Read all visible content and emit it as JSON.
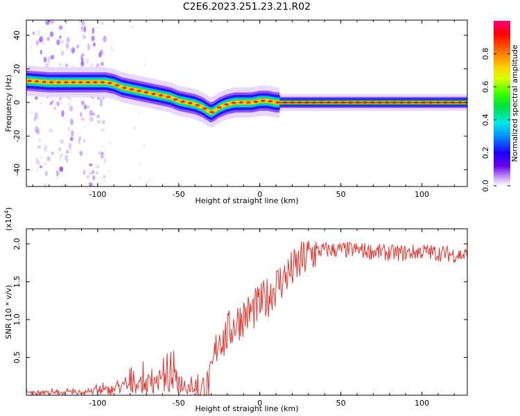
{
  "figure": {
    "title": "C2E6.2023.251.23.21.R02"
  },
  "chart_data": [
    {
      "type": "heatmap",
      "title": "C2E6.2023.251.23.21.R02",
      "xlabel": "Height of straight line (km)",
      "ylabel": "Frequency (Hz)",
      "xlim": [
        -144,
        128
      ],
      "ylim": [
        -50,
        49
      ],
      "xticks": [
        -100,
        -50,
        0,
        50,
        100
      ],
      "xtick_labels": [
        "-100",
        "-50",
        "0",
        "50",
        "100"
      ],
      "yticks": [
        -40,
        -20,
        0,
        20,
        40
      ],
      "ytick_labels": [
        "-40",
        "-20",
        "0",
        "20",
        "40"
      ],
      "ridge": {
        "x": [
          -144,
          -130,
          -120,
          -110,
          -100,
          -95,
          -90,
          -85,
          -80,
          -75,
          -70,
          -65,
          -60,
          -55,
          -50,
          -45,
          -40,
          -35,
          -32,
          -30,
          -28,
          -25,
          -20,
          -15,
          -10,
          -5,
          0,
          5,
          10,
          12,
          20,
          40,
          60,
          80,
          100,
          128
        ],
        "y": [
          13,
          12,
          12,
          12,
          12,
          12,
          11,
          9,
          8,
          7,
          6,
          5,
          4,
          3,
          1,
          0,
          -1,
          -3,
          -5,
          -6,
          -5,
          -3,
          -1,
          0,
          0,
          0,
          1,
          1,
          0,
          0,
          0,
          0,
          0,
          0,
          0,
          0
        ]
      },
      "colorbar": {
        "label": "Normalized spectral amplitude",
        "ticks": [
          0.0,
          0.2,
          0.4,
          0.6,
          0.8
        ],
        "tick_labels": [
          "0.0",
          "0.2",
          "0.4",
          "0.6",
          "0.8"
        ],
        "range": [
          0,
          1
        ]
      },
      "grid": false
    },
    {
      "type": "line",
      "xlabel": "Height of straight line (km)",
      "ylabel": "SNR (10 * v/v)",
      "y_scale_label_base": "(x10",
      "y_scale_label_exp": "4",
      "y_scale_label_close": ")",
      "xlim": [
        -144,
        128
      ],
      "ylim": [
        0,
        2.2
      ],
      "xticks": [
        -100,
        -50,
        0,
        50,
        100
      ],
      "xtick_labels": [
        "-100",
        "-50",
        "0",
        "50",
        "100"
      ],
      "yticks": [
        0.5,
        1.0,
        1.5,
        2.0
      ],
      "ytick_labels": [
        "0.5",
        "1.0",
        "1.5",
        "2.0"
      ],
      "color": "#e8312d",
      "series": [
        {
          "x": [
            -144,
            -120,
            -100,
            -90,
            -80,
            -70,
            -60,
            -55,
            -50,
            -45,
            -40,
            -35,
            -32,
            -30,
            -28,
            -25,
            -22,
            -20,
            -15,
            -10,
            -5,
            0,
            5,
            10,
            15,
            20,
            25,
            30,
            35,
            40,
            50,
            60,
            70,
            80,
            90,
            100,
            110,
            120,
            128
          ],
          "y": [
            0.03,
            0.03,
            0.05,
            0.08,
            0.12,
            0.15,
            0.18,
            0.2,
            0.18,
            0.12,
            0.1,
            0.06,
            0.1,
            0.2,
            0.5,
            0.8,
            0.72,
            0.82,
            0.95,
            1.05,
            1.1,
            1.2,
            1.3,
            1.45,
            1.55,
            1.65,
            1.75,
            1.85,
            1.9,
            1.92,
            1.92,
            1.92,
            1.9,
            1.88,
            1.88,
            1.9,
            1.88,
            1.86,
            1.85
          ]
        }
      ],
      "grid": false
    }
  ]
}
